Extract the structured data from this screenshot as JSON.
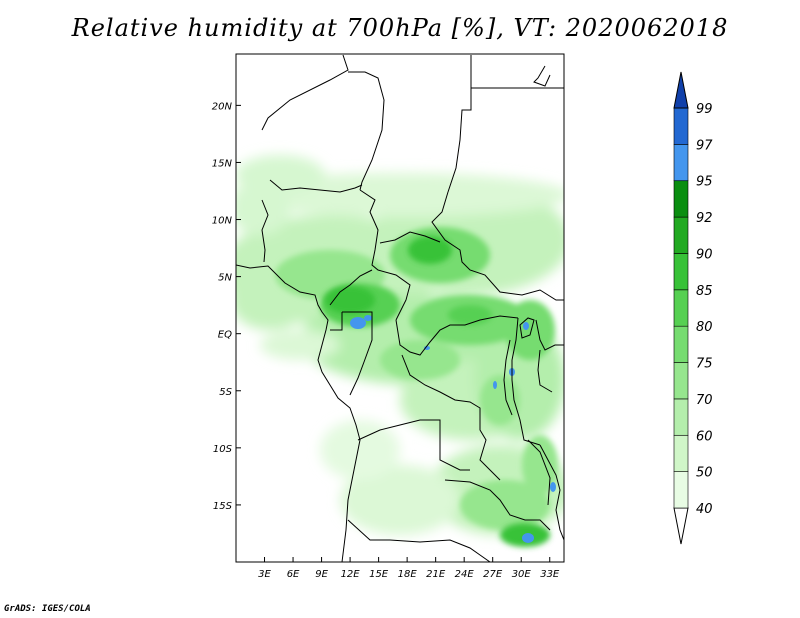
{
  "title": "Relative humidity at 700hPa [%], VT: 2020062018",
  "credit": "GrADS: IGES/COLA",
  "map": {
    "lon_range": [
      0,
      34.5
    ],
    "lat_range": [
      -20,
      24.5
    ],
    "lat_labels": [
      {
        "lat": 20,
        "text": "20N"
      },
      {
        "lat": 15,
        "text": "15N"
      },
      {
        "lat": 10,
        "text": "10N"
      },
      {
        "lat": 5,
        "text": "5N"
      },
      {
        "lat": 0,
        "text": "EQ"
      },
      {
        "lat": -5,
        "text": "5S"
      },
      {
        "lat": -10,
        "text": "10S"
      },
      {
        "lat": -15,
        "text": "15S"
      }
    ],
    "lon_labels": [
      {
        "lon": 3,
        "text": "3E"
      },
      {
        "lon": 6,
        "text": "6E"
      },
      {
        "lon": 9,
        "text": "9E"
      },
      {
        "lon": 12,
        "text": "12E"
      },
      {
        "lon": 15,
        "text": "15E"
      },
      {
        "lon": 18,
        "text": "18E"
      },
      {
        "lon": 21,
        "text": "21E"
      },
      {
        "lon": 24,
        "text": "24E"
      },
      {
        "lon": 27,
        "text": "27E"
      },
      {
        "lon": 30,
        "text": "30E"
      },
      {
        "lon": 33,
        "text": "33E"
      }
    ]
  },
  "colorbar": {
    "levels": [
      "40",
      "50",
      "60",
      "70",
      "75",
      "80",
      "85",
      "90",
      "92",
      "95",
      "97",
      "99"
    ],
    "colors": [
      "#ffffff",
      "#e8fce4",
      "#d0f6c8",
      "#b4eeac",
      "#96e68e",
      "#76dc70",
      "#56d052",
      "#38c238",
      "#22aa22",
      "#0a8e10",
      "#4496ee",
      "#2268d2",
      "#1040aa"
    ]
  }
}
